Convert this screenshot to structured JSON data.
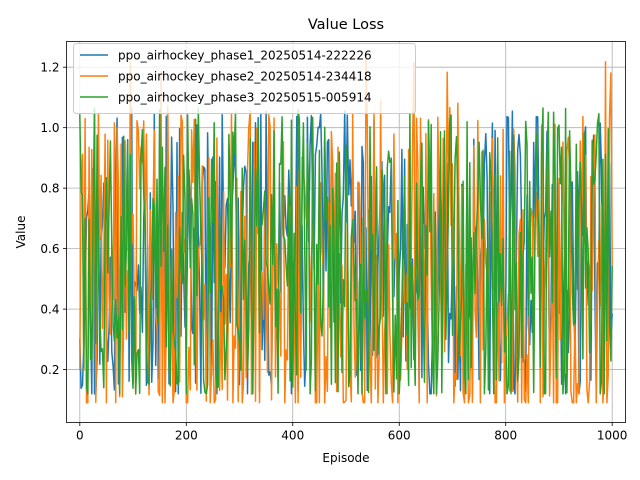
{
  "chart_data": {
    "type": "line",
    "title": "Value Loss",
    "xlabel": "Episode",
    "ylabel": "Value",
    "xlim": [
      -25,
      1025
    ],
    "ylim": [
      0.025,
      1.285
    ],
    "xticks": [
      0,
      200,
      400,
      600,
      800,
      1000
    ],
    "yticks": [
      0.2,
      0.4,
      0.6,
      0.8,
      1.0,
      1.2
    ],
    "ytick_labels": [
      "0.2",
      "0.4",
      "0.6",
      "0.8",
      "1.0",
      "1.2"
    ],
    "grid": true,
    "legend_position": "top-left",
    "series": [
      {
        "name": "ppo_airhockey_phase1_20250514-222226",
        "color": "#1f77b4",
        "x_start": 0,
        "x_end": 1000,
        "min": 0.12,
        "max": 1.065,
        "mean": 0.56
      },
      {
        "name": "ppo_airhockey_phase2_20250514-234418",
        "color": "#ff7f0e",
        "x_start": 0,
        "x_end": 1000,
        "min": 0.09,
        "max": 1.23,
        "mean": 0.5
      },
      {
        "name": "ppo_airhockey_phase3_20250515-005914",
        "color": "#2ca02c",
        "x_start": 0,
        "x_end": 1000,
        "min": 0.12,
        "max": 1.065,
        "mean": 0.58
      }
    ]
  }
}
